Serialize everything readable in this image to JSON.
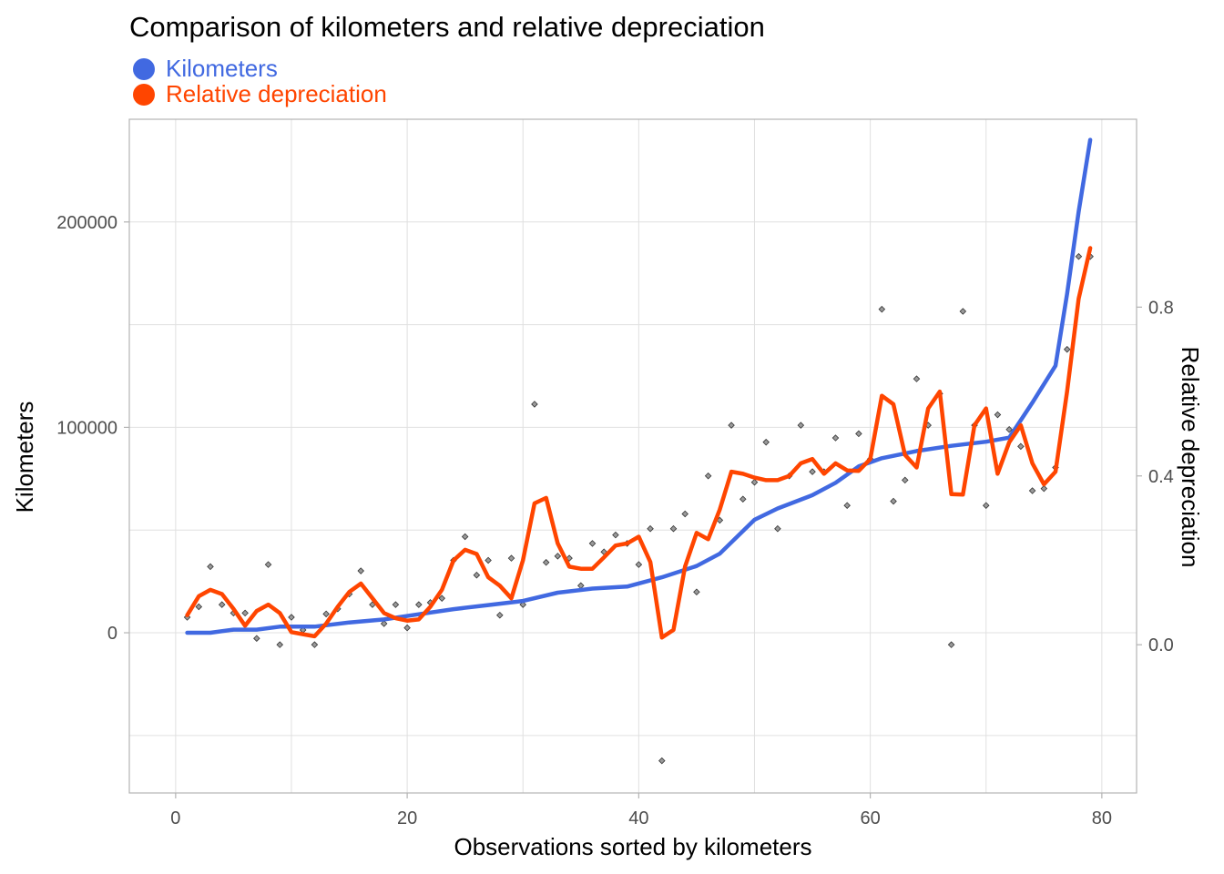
{
  "chart_data": {
    "type": "line",
    "title": "Comparison of kilometers and relative depreciation",
    "xlabel": "Observations sorted by kilometers",
    "ylabel": "Kilometers",
    "y2label": "Relative depreciation",
    "xlim": [
      -4,
      83
    ],
    "ylim": [
      -78000,
      250000
    ],
    "y2lim": [
      -0.3513,
      1.2452
    ],
    "xticks": [
      0,
      20,
      40,
      60,
      80
    ],
    "xtick_labels": [
      "0",
      "20",
      "40",
      "60",
      "80"
    ],
    "yticks": [
      0,
      100000,
      200000
    ],
    "ytick_labels": [
      "0",
      "100000",
      "200000"
    ],
    "y2ticks": [
      0.0,
      0.4,
      0.8
    ],
    "y2tick_labels": [
      "0.0",
      "0.4",
      "0.8"
    ],
    "legend_position": "top-left",
    "grid": true,
    "series": [
      {
        "name": "Kilometers",
        "axis": "left",
        "color": "#4169E1",
        "x": [
          1,
          3,
          5,
          7,
          9,
          12,
          15,
          18,
          21,
          24,
          27,
          30,
          33,
          36,
          39,
          42,
          45,
          47,
          50,
          52,
          55,
          57,
          59,
          61,
          64,
          67,
          70,
          72,
          74,
          76,
          77,
          78,
          79
        ],
        "y": [
          0,
          0,
          1500,
          1500,
          3000,
          3000,
          5000,
          6500,
          9000,
          11500,
          13500,
          15500,
          19500,
          21500,
          22500,
          27000,
          32500,
          38500,
          55000,
          60500,
          67000,
          73000,
          81000,
          85000,
          88500,
          91000,
          93000,
          95000,
          112000,
          130000,
          165000,
          205000,
          240000
        ]
      },
      {
        "name": "Relative depreciation",
        "axis": "right",
        "color": "#FF4500",
        "x": [
          1,
          2,
          3,
          4,
          5,
          6,
          7,
          8,
          9,
          10,
          11,
          12,
          13,
          14,
          15,
          16,
          17,
          18,
          19,
          20,
          21,
          22,
          23,
          24,
          25,
          26,
          27,
          28,
          29,
          30,
          31,
          32,
          33,
          34,
          35,
          36,
          37,
          38,
          39,
          40,
          41,
          42,
          43,
          44,
          45,
          46,
          47,
          48,
          49,
          50,
          51,
          52,
          53,
          54,
          55,
          56,
          57,
          58,
          59,
          60,
          61,
          62,
          63,
          64,
          65,
          66,
          67,
          68,
          69,
          70,
          71,
          72,
          73,
          74,
          75,
          76,
          77,
          78,
          79
        ],
        "y": [
          0.07,
          0.115,
          0.13,
          0.12,
          0.085,
          0.045,
          0.08,
          0.095,
          0.075,
          0.03,
          0.025,
          0.02,
          0.05,
          0.09,
          0.125,
          0.145,
          0.11,
          0.075,
          0.063,
          0.057,
          0.06,
          0.09,
          0.13,
          0.2,
          0.225,
          0.215,
          0.16,
          0.14,
          0.11,
          0.2,
          0.335,
          0.348,
          0.24,
          0.185,
          0.18,
          0.18,
          0.207,
          0.235,
          0.24,
          0.256,
          0.196,
          0.017,
          0.035,
          0.185,
          0.265,
          0.25,
          0.32,
          0.41,
          0.405,
          0.396,
          0.39,
          0.39,
          0.4,
          0.43,
          0.44,
          0.405,
          0.43,
          0.413,
          0.412,
          0.44,
          0.59,
          0.57,
          0.45,
          0.42,
          0.56,
          0.6,
          0.357,
          0.356,
          0.52,
          0.56,
          0.405,
          0.48,
          0.52,
          0.43,
          0.38,
          0.41,
          0.6,
          0.82,
          0.94
        ]
      },
      {
        "name": "",
        "type": "scatter",
        "axis": "right",
        "color": "#666666",
        "x": [
          1,
          2,
          3,
          4,
          5,
          6,
          7,
          8,
          9,
          10,
          11,
          12,
          13,
          14,
          15,
          16,
          17,
          18,
          19,
          20,
          21,
          22,
          23,
          24,
          25,
          26,
          27,
          28,
          29,
          30,
          31,
          32,
          33,
          34,
          35,
          36,
          37,
          38,
          39,
          40,
          41,
          42,
          43,
          44,
          45,
          46,
          47,
          48,
          49,
          50,
          51,
          52,
          53,
          54,
          55,
          56,
          57,
          58,
          59,
          60,
          61,
          62,
          63,
          64,
          65,
          66,
          67,
          68,
          69,
          70,
          71,
          72,
          73,
          74,
          75,
          76,
          77,
          78,
          79
        ],
        "y": [
          0.065,
          0.09,
          0.185,
          0.095,
          0.075,
          0.075,
          0.015,
          0.19,
          0.0,
          0.065,
          0.035,
          0.0,
          0.073,
          0.085,
          0.12,
          0.175,
          0.095,
          0.05,
          0.095,
          0.04,
          0.095,
          0.1,
          0.11,
          0.2,
          0.256,
          0.165,
          0.2,
          0.07,
          0.205,
          0.095,
          0.57,
          0.195,
          0.21,
          0.205,
          0.14,
          0.24,
          0.22,
          0.26,
          0.24,
          0.19,
          0.275,
          -0.275,
          0.275,
          0.31,
          0.125,
          0.4,
          0.295,
          0.52,
          0.345,
          0.385,
          0.48,
          0.275,
          0.4,
          0.52,
          0.41,
          0.41,
          0.49,
          0.33,
          0.5,
          0.44,
          0.795,
          0.34,
          0.39,
          0.63,
          0.52,
          0.595,
          0.0,
          0.79,
          0.52,
          0.33,
          0.545,
          0.51,
          0.47,
          0.365,
          0.37,
          0.42,
          0.7,
          0.92,
          0.92
        ]
      }
    ]
  }
}
